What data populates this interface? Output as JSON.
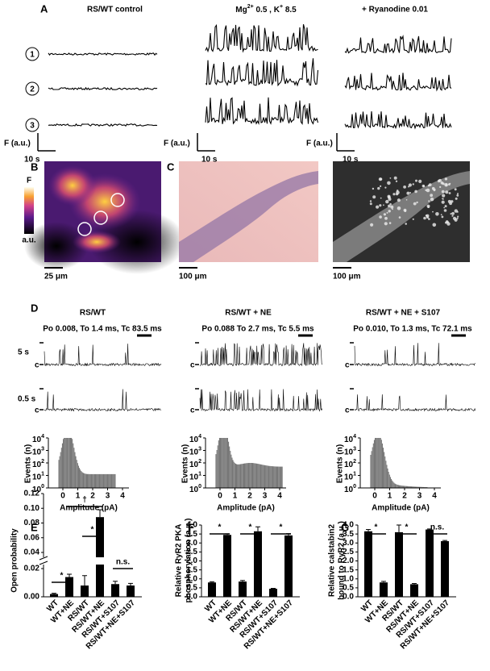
{
  "panel_labels": [
    "A",
    "B",
    "C",
    "D",
    "E",
    "F",
    "G"
  ],
  "panel_a": {
    "conditions": [
      {
        "title": "RS/WT control"
      },
      {
        "title_parts": [
          "Mg",
          "2+",
          " 0.5 , K",
          "+",
          " 8.5"
        ]
      },
      {
        "title": "+ Ryanodine 0.01"
      }
    ],
    "cell_numbers": [
      "1",
      "2",
      "3"
    ],
    "y_scale": "F (a.u.)",
    "x_scale": "10 s"
  },
  "panel_b": {
    "colorbar_top": "F",
    "colorbar_bottom": "a.u.",
    "scale_bar": "25 μm"
  },
  "panel_c": {
    "scale_bar": "100 μm"
  },
  "panel_d": {
    "conditions": [
      {
        "title": "RS/WT",
        "stats": "Po 0.008, To 1.4 ms, Tc 83.5 ms"
      },
      {
        "title": "RS/WT + NE",
        "stats": "Po 0.088 To 2.7 ms, Tc 5.5 ms"
      },
      {
        "title": "RS/WT + NE + S107",
        "stats": "Po 0.010, To 1.3 ms, Tc 72.1 ms"
      }
    ],
    "row_labels": [
      "5 s",
      "0.5 s"
    ],
    "closed_label": "c",
    "histogram": {
      "ylabel": "Events (n)",
      "xlabel": "Amplitude (pA)",
      "xticks": [
        0,
        1,
        2,
        3,
        4
      ],
      "ytick_base": "10",
      "ytick_exponents": [
        0,
        1,
        2,
        3,
        4
      ]
    }
  },
  "chart_data": [
    {
      "type": "bar",
      "ylabel_lines": [
        "Open probability"
      ],
      "categories": [
        "WT",
        "WT+NE",
        "RS/WT",
        "RS/WT+NE",
        "RS/WT+S107",
        "RS/WT+NE+S107"
      ],
      "values": [
        0.002,
        0.014,
        0.008,
        0.088,
        0.009,
        0.008
      ],
      "errors": [
        0.0005,
        0.002,
        0.007,
        0.01,
        0.002,
        0.0015
      ],
      "color": "#000000",
      "ylim": [
        0,
        0.12
      ],
      "axis_break": [
        0.02,
        0.04
      ],
      "yticks": [
        {
          "value": 0,
          "label": "0.00"
        },
        {
          "value": 0.02,
          "label": "0.02"
        },
        {
          "value": 0.04,
          "label": "0.04"
        },
        {
          "value": 0.06,
          "label": "0.06"
        },
        {
          "value": 0.08,
          "label": "0.08"
        },
        {
          "value": 0.1,
          "label": "0.10"
        },
        {
          "value": 0.12,
          "label": "0.12"
        }
      ],
      "annotations": [
        "*",
        "†",
        "*",
        "n.s."
      ]
    },
    {
      "type": "bar",
      "ylabel_lines": [
        "Relative RyR2 PKA",
        "phosphorylation (a.u.)"
      ],
      "categories": [
        "WT",
        "WT+NE",
        "RS/WT",
        "RS/WT+NE",
        "RS/WT+S107",
        "RS/WT+NE+S107"
      ],
      "values": [
        0.8,
        3.45,
        0.85,
        3.65,
        0.45,
        3.42
      ],
      "errors": [
        0.04,
        0.06,
        0.06,
        0.25,
        0.02,
        0.1
      ],
      "color": "#000000",
      "ylim": [
        0,
        4
      ],
      "yticks": [
        {
          "value": 0,
          "label": "0.0"
        },
        {
          "value": 0.5,
          "label": "0.5"
        },
        {
          "value": 1,
          "label": "1.0"
        },
        {
          "value": 1.5,
          "label": "1.5"
        },
        {
          "value": 2,
          "label": "2.0"
        },
        {
          "value": 2.5,
          "label": "2.5"
        },
        {
          "value": 3,
          "label": "3.0"
        },
        {
          "value": 3.5,
          "label": "3.5"
        },
        {
          "value": 4,
          "label": "4.0"
        }
      ],
      "annotations": [
        "*",
        "*",
        "*"
      ]
    },
    {
      "type": "bar",
      "ylabel_lines": [
        "Relative calstabin2",
        "bound to RyR2 (a.u.)"
      ],
      "categories": [
        "WT",
        "WT+NE",
        "RS/WT",
        "RS/WT+NE",
        "RS/WT+S107",
        "RS/WT+NE+S107"
      ],
      "values": [
        3.65,
        0.8,
        3.6,
        0.7,
        3.75,
        3.1
      ],
      "errors": [
        0.1,
        0.06,
        0.4,
        0.04,
        0.03,
        0.04
      ],
      "color": "#000000",
      "ylim": [
        0,
        4
      ],
      "yticks": [
        {
          "value": 0,
          "label": "0.0"
        },
        {
          "value": 0.5,
          "label": "0.5"
        },
        {
          "value": 1,
          "label": "1.0"
        },
        {
          "value": 1.5,
          "label": "1.5"
        },
        {
          "value": 2,
          "label": "2.0"
        },
        {
          "value": 2.5,
          "label": "2.5"
        },
        {
          "value": 3,
          "label": "3.0"
        },
        {
          "value": 3.5,
          "label": "3.5"
        },
        {
          "value": 4,
          "label": "4.0"
        }
      ],
      "annotations": [
        "*",
        "*",
        "n.s."
      ]
    }
  ]
}
